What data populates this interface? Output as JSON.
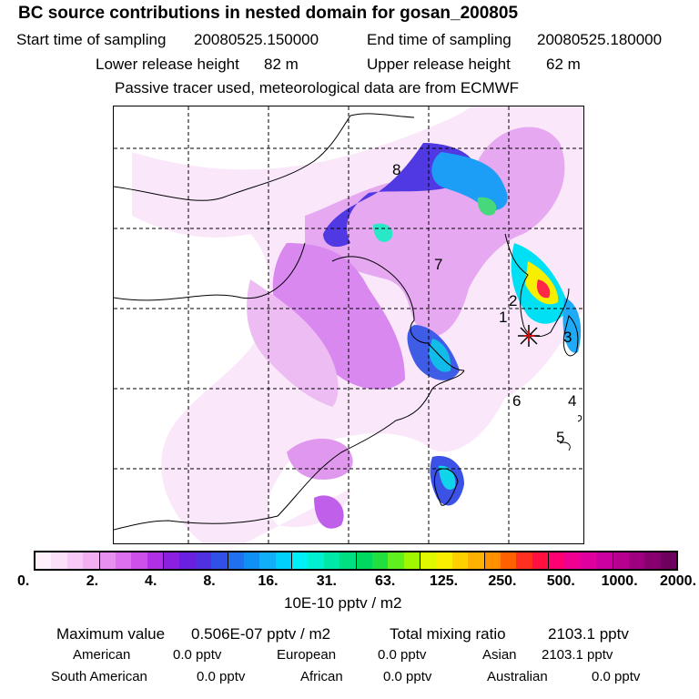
{
  "title": "BC  source contributions in nested domain for gosan_200805",
  "header": {
    "start_label": "Start time of sampling",
    "start_value": "20080525.150000",
    "end_label": "End time of sampling",
    "end_value": "20080525.180000",
    "lower_label": "Lower release height",
    "lower_value": "82 m",
    "upper_label": "Upper release height",
    "upper_value": "62 m",
    "note": "Passive tracer used, meteorological data are from ECMWF"
  },
  "map": {
    "region_labels": [
      "1",
      "2",
      "3",
      "4",
      "5",
      "6",
      "7",
      "8"
    ],
    "receptor_icon": "star-marker-icon"
  },
  "colorbar": {
    "ticks": [
      "0.",
      "2.",
      "4.",
      "8.",
      "16.",
      "31.",
      "63.",
      "125.",
      "250.",
      "500.",
      "1000.",
      "2000."
    ],
    "unit": "10E-10 pptv / m2",
    "colors": [
      "#fff0fc",
      "#fce0fa",
      "#f8c8f6",
      "#f2b0f2",
      "#e890f0",
      "#dd70ee",
      "#cc50ea",
      "#b030e6",
      "#8a20e0",
      "#6a20e0",
      "#5030e0",
      "#3050e8",
      "#2070f0",
      "#1090f4",
      "#10b0f8",
      "#00d0fc",
      "#00f0f8",
      "#00f0d0",
      "#00e8a8",
      "#00e080",
      "#00d860",
      "#20e040",
      "#60f020",
      "#a0f800",
      "#e0f800",
      "#f8f000",
      "#ffd000",
      "#ffb000",
      "#ff9000",
      "#ff6000",
      "#ff3020",
      "#ff1040",
      "#ff0070",
      "#f00090",
      "#e000a0",
      "#cc00a0",
      "#b80090",
      "#a00080",
      "#880070",
      "#700060"
    ]
  },
  "stats": {
    "max_label": "Maximum value",
    "max_value": "0.506E-07 pptv / m2",
    "total_label": "Total mixing ratio",
    "total_value": "2103.1 pptv",
    "american_label": "American",
    "american_value": "0.0 pptv",
    "european_label": "European",
    "european_value": "0.0 pptv",
    "asian_label": "Asian",
    "asian_value": "2103.1 pptv",
    "south_american_label": "South American",
    "south_american_value": "0.0 pptv",
    "african_label": "African",
    "african_value": "0.0 pptv",
    "australian_label": "Australian",
    "australian_value": "0.0 pptv"
  }
}
